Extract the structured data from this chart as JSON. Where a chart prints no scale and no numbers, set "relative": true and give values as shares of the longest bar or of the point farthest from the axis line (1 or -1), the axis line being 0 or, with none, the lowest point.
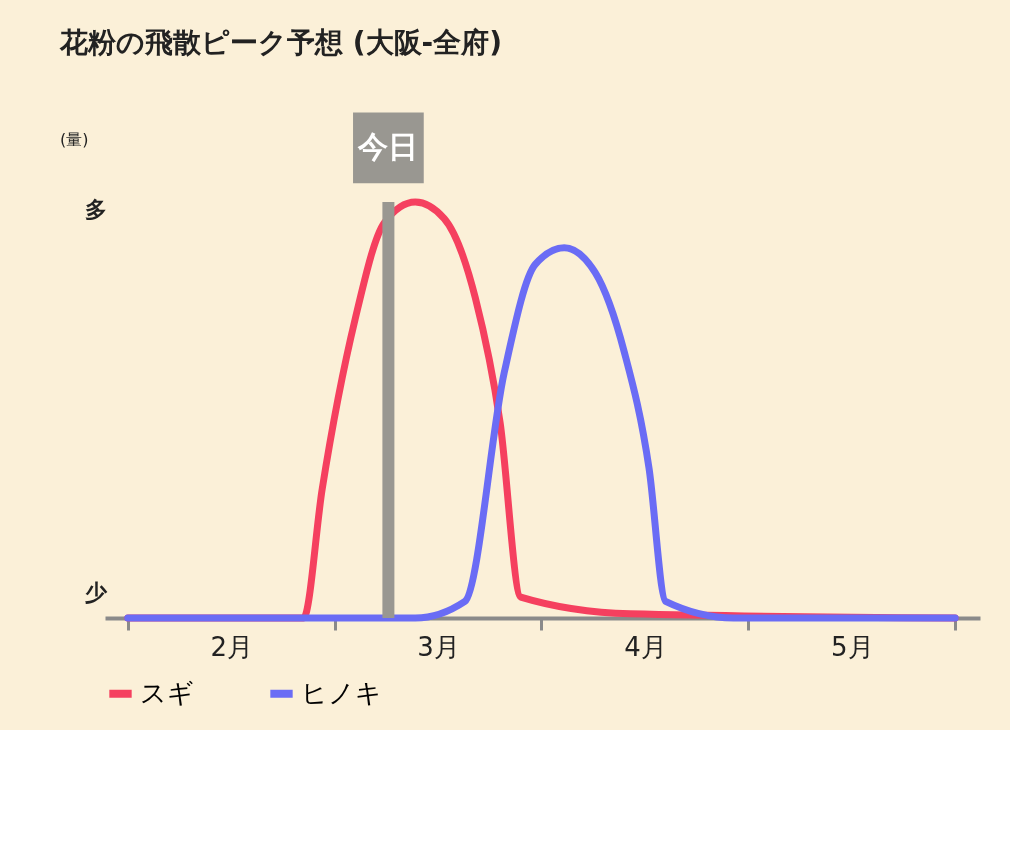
{
  "chart_data": {
    "type": "line",
    "title": "花粉の飛散ピーク予想 (大阪-全府)",
    "relative": true,
    "x": [
      2.0,
      2.85,
      2.94,
      3.1,
      3.24,
      3.39,
      3.53,
      3.68,
      3.8,
      3.9,
      4.43,
      6.0
    ],
    "series": [
      {
        "name": "スギ",
        "color": "#f5405f",
        "values": [
          0,
          0,
          0.31,
          0.72,
          0.95,
          1,
          0.96,
          0.77,
          0.47,
          0.05,
          0.01,
          0
        ]
      },
      {
        "name": "ヒノキ",
        "color": "#6a6cf5",
        "x": [
          2.0,
          3.39,
          3.63,
          3.82,
          3.97,
          4.11,
          4.26,
          4.4,
          4.52,
          4.6,
          4.93,
          6.0
        ],
        "values": [
          0,
          0,
          0.04,
          0.59,
          0.85,
          0.89,
          0.83,
          0.64,
          0.36,
          0.04,
          0,
          0
        ]
      }
    ],
    "xlim": [
      1.89,
      6.12
    ],
    "xticks": [
      {
        "value": 2,
        "label": null
      },
      {
        "value": 2.5,
        "label": "2月"
      },
      {
        "value": 3,
        "label": null
      },
      {
        "value": 3.5,
        "label": "3月"
      },
      {
        "value": 4,
        "label": null
      },
      {
        "value": 4.5,
        "label": "4月"
      },
      {
        "value": 5,
        "label": null
      },
      {
        "value": 5.5,
        "label": "5月"
      },
      {
        "value": 6,
        "label": null
      }
    ],
    "ref_lines": [
      {
        "axis": "x",
        "value": 3.26,
        "label": "今日",
        "color": "#999791"
      }
    ],
    "annotations": [
      "(量)",
      "多",
      "少"
    ],
    "legend": "bottom",
    "grid": false,
    "marker": "none",
    "line_style": "solid"
  }
}
